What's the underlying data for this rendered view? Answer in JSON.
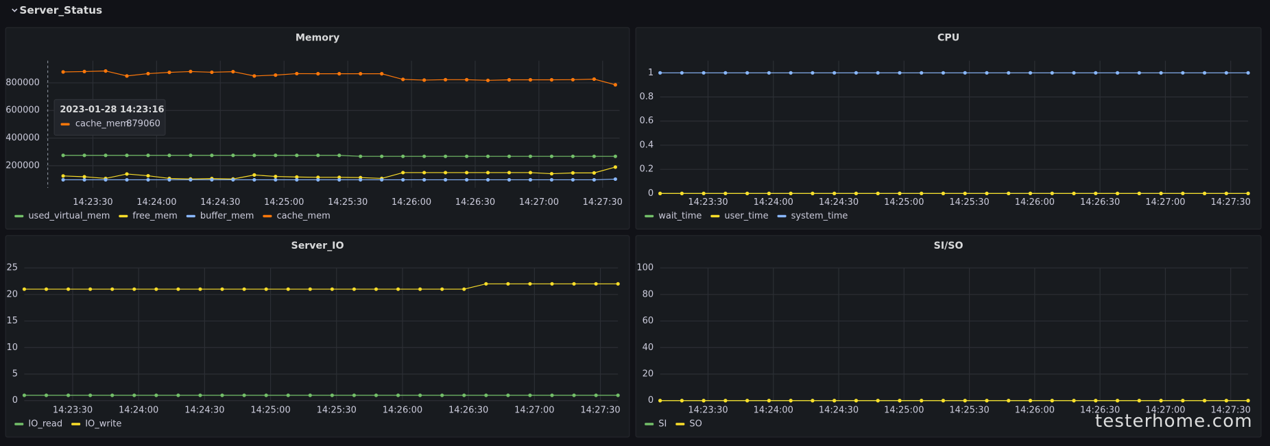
{
  "section_title": "Server_Status",
  "watermark": "testerhome.com",
  "tooltip": {
    "time": "2023-01-28 14:23:16",
    "series": "cache_mem",
    "value": 879060
  },
  "chart_data": [
    {
      "type": "line",
      "title": "Memory",
      "x": [
        "14:23:16",
        "14:23:26",
        "14:23:36",
        "14:23:46",
        "14:23:56",
        "14:24:06",
        "14:24:16",
        "14:24:26",
        "14:24:36",
        "14:24:46",
        "14:24:56",
        "14:25:06",
        "14:25:16",
        "14:25:26",
        "14:25:36",
        "14:25:46",
        "14:25:56",
        "14:26:06",
        "14:26:16",
        "14:26:26",
        "14:26:36",
        "14:26:46",
        "14:26:56",
        "14:27:06",
        "14:27:16",
        "14:27:26",
        "14:27:36"
      ],
      "xlim": [
        "14:23:08",
        "14:27:38"
      ],
      "xticks": [
        "14:23:30",
        "14:24:00",
        "14:24:30",
        "14:25:00",
        "14:25:30",
        "14:26:00",
        "14:26:30",
        "14:27:00",
        "14:27:30"
      ],
      "ylim": [
        40000,
        960000
      ],
      "yticks": [
        200000,
        400000,
        600000,
        800000
      ],
      "grid": true,
      "series": [
        {
          "name": "used_virtual_mem",
          "color": "#73bf69",
          "values": [
            275000,
            275000,
            275000,
            275000,
            275000,
            275000,
            275000,
            275000,
            275000,
            275000,
            275000,
            275000,
            275000,
            275000,
            268000,
            268000,
            268000,
            268000,
            268000,
            268000,
            268000,
            268000,
            268000,
            268000,
            268000,
            268000,
            268000
          ]
        },
        {
          "name": "free_mem",
          "color": "#fade2a",
          "values": [
            126000,
            120000,
            108000,
            140000,
            127000,
            108000,
            104000,
            107000,
            104000,
            133000,
            122000,
            118000,
            116000,
            116000,
            114000,
            108000,
            150000,
            150000,
            150000,
            150000,
            150000,
            150000,
            150000,
            142000,
            148000,
            148000,
            190000
          ]
        },
        {
          "name": "buffer_mem",
          "color": "#8ab8ff",
          "values": [
            98000,
            98000,
            98000,
            98000,
            98000,
            98000,
            98000,
            98000,
            98000,
            98000,
            98000,
            98000,
            98000,
            98000,
            98000,
            98000,
            98000,
            98000,
            98000,
            98000,
            98000,
            98000,
            98000,
            98000,
            98000,
            98000,
            103000
          ]
        },
        {
          "name": "cache_mem",
          "color": "#ff780a",
          "values": [
            879060,
            882000,
            886000,
            850000,
            867000,
            876000,
            882000,
            877000,
            881000,
            850000,
            856000,
            867000,
            866000,
            866000,
            866000,
            866000,
            825000,
            820000,
            823000,
            823000,
            818000,
            822000,
            822000,
            822000,
            823000,
            827000,
            786000
          ]
        }
      ]
    },
    {
      "type": "line",
      "title": "CPU",
      "x": [
        "14:23:08",
        "14:23:18",
        "14:23:28",
        "14:23:38",
        "14:23:48",
        "14:23:58",
        "14:24:08",
        "14:24:18",
        "14:24:28",
        "14:24:38",
        "14:24:48",
        "14:24:58",
        "14:25:08",
        "14:25:18",
        "14:25:28",
        "14:25:38",
        "14:25:48",
        "14:25:58",
        "14:26:08",
        "14:26:18",
        "14:26:28",
        "14:26:38",
        "14:26:48",
        "14:26:58",
        "14:27:08",
        "14:27:18",
        "14:27:28",
        "14:27:38"
      ],
      "xlim": [
        "14:23:08",
        "14:27:38"
      ],
      "xticks": [
        "14:23:30",
        "14:24:00",
        "14:24:30",
        "14:25:00",
        "14:25:30",
        "14:26:00",
        "14:26:30",
        "14:27:00",
        "14:27:30"
      ],
      "ylim": [
        0,
        1.1
      ],
      "yticks": [
        0,
        0.2,
        0.4,
        0.6,
        0.8,
        1
      ],
      "grid": true,
      "series": [
        {
          "name": "wait_time",
          "color": "#73bf69",
          "values": [
            0,
            0,
            0,
            0,
            0,
            0,
            0,
            0,
            0,
            0,
            0,
            0,
            0,
            0,
            0,
            0,
            0,
            0,
            0,
            0,
            0,
            0,
            0,
            0,
            0,
            0,
            0,
            0
          ]
        },
        {
          "name": "user_time",
          "color": "#fade2a",
          "values": [
            0,
            0,
            0,
            0,
            0,
            0,
            0,
            0,
            0,
            0,
            0,
            0,
            0,
            0,
            0,
            0,
            0,
            0,
            0,
            0,
            0,
            0,
            0,
            0,
            0,
            0,
            0,
            0
          ]
        },
        {
          "name": "system_time",
          "color": "#8ab8ff",
          "values": [
            1,
            1,
            1,
            1,
            1,
            1,
            1,
            1,
            1,
            1,
            1,
            1,
            1,
            1,
            1,
            1,
            1,
            1,
            1,
            1,
            1,
            1,
            1,
            1,
            1,
            1,
            1,
            1
          ]
        }
      ]
    },
    {
      "type": "line",
      "title": "Server_IO",
      "x": [
        "14:23:08",
        "14:23:18",
        "14:23:28",
        "14:23:38",
        "14:23:48",
        "14:23:58",
        "14:24:08",
        "14:24:18",
        "14:24:28",
        "14:24:38",
        "14:24:48",
        "14:24:58",
        "14:25:08",
        "14:25:18",
        "14:25:28",
        "14:25:38",
        "14:25:48",
        "14:25:58",
        "14:26:08",
        "14:26:18",
        "14:26:28",
        "14:26:38",
        "14:26:48",
        "14:26:58",
        "14:27:08",
        "14:27:18",
        "14:27:28",
        "14:27:38"
      ],
      "xlim": [
        "14:23:08",
        "14:27:38"
      ],
      "xticks": [
        "14:23:30",
        "14:24:00",
        "14:24:30",
        "14:25:00",
        "14:25:30",
        "14:26:00",
        "14:26:30",
        "14:27:00",
        "14:27:30"
      ],
      "ylim": [
        0,
        25
      ],
      "yticks": [
        0,
        5,
        10,
        15,
        20,
        25
      ],
      "grid": true,
      "series": [
        {
          "name": "IO_read",
          "color": "#73bf69",
          "values": [
            1,
            1,
            1,
            1,
            1,
            1,
            1,
            1,
            1,
            1,
            1,
            1,
            1,
            1,
            1,
            1,
            1,
            1,
            1,
            1,
            1,
            1,
            1,
            1,
            1,
            1,
            1,
            1
          ]
        },
        {
          "name": "IO_write",
          "color": "#fade2a",
          "values": [
            21,
            21,
            21,
            21,
            21,
            21,
            21,
            21,
            21,
            21,
            21,
            21,
            21,
            21,
            21,
            21,
            21,
            21,
            21,
            21,
            21,
            22,
            22,
            22,
            22,
            22,
            22,
            22
          ]
        }
      ]
    },
    {
      "type": "line",
      "title": "SI/SO",
      "x": [
        "14:23:08",
        "14:23:18",
        "14:23:28",
        "14:23:38",
        "14:23:48",
        "14:23:58",
        "14:24:08",
        "14:24:18",
        "14:24:28",
        "14:24:38",
        "14:24:48",
        "14:24:58",
        "14:25:08",
        "14:25:18",
        "14:25:28",
        "14:25:38",
        "14:25:48",
        "14:25:58",
        "14:26:08",
        "14:26:18",
        "14:26:28",
        "14:26:38",
        "14:26:48",
        "14:26:58",
        "14:27:08",
        "14:27:18",
        "14:27:28",
        "14:27:38"
      ],
      "xlim": [
        "14:23:08",
        "14:27:38"
      ],
      "xticks": [
        "14:23:30",
        "14:24:00",
        "14:24:30",
        "14:25:00",
        "14:25:30",
        "14:26:00",
        "14:26:30",
        "14:27:00",
        "14:27:30"
      ],
      "ylim": [
        0,
        100
      ],
      "yticks": [
        0,
        20,
        40,
        60,
        80,
        100
      ],
      "grid": true,
      "series": [
        {
          "name": "SI",
          "color": "#73bf69",
          "values": [
            0,
            0,
            0,
            0,
            0,
            0,
            0,
            0,
            0,
            0,
            0,
            0,
            0,
            0,
            0,
            0,
            0,
            0,
            0,
            0,
            0,
            0,
            0,
            0,
            0,
            0,
            0,
            0
          ]
        },
        {
          "name": "SO",
          "color": "#fade2a",
          "values": [
            0,
            0,
            0,
            0,
            0,
            0,
            0,
            0,
            0,
            0,
            0,
            0,
            0,
            0,
            0,
            0,
            0,
            0,
            0,
            0,
            0,
            0,
            0,
            0,
            0,
            0,
            0,
            0
          ]
        }
      ]
    }
  ]
}
